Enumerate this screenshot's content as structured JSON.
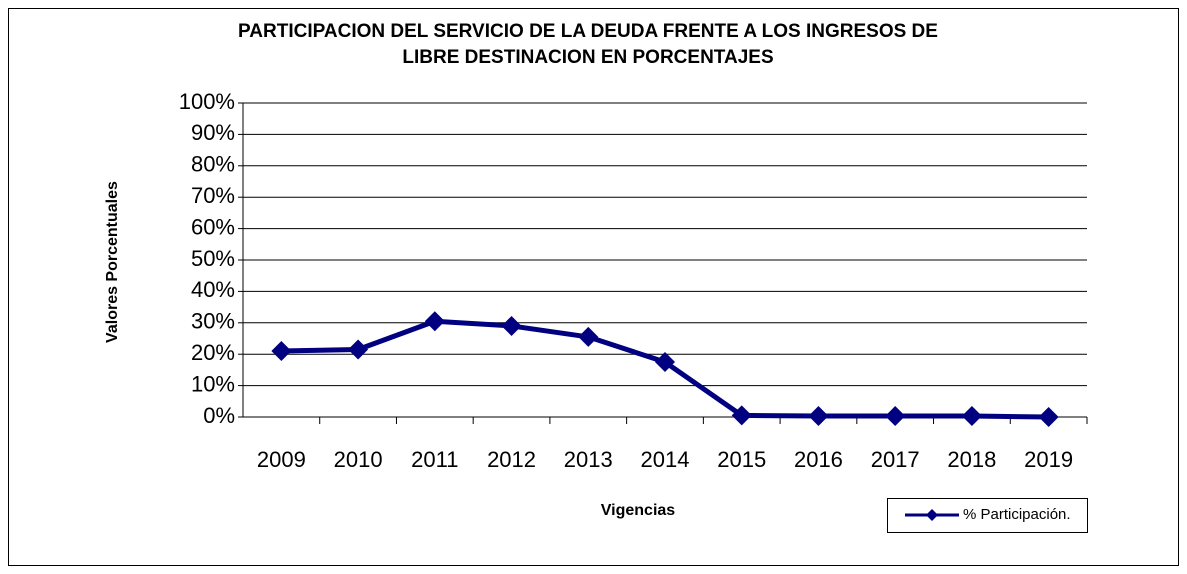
{
  "chart_data": {
    "type": "line",
    "title": [
      "PARTICIPACION DEL SERVICIO DE LA DEUDA FRENTE A LOS INGRESOS DE",
      "LIBRE DESTINACION EN PORCENTAJES"
    ],
    "x_label": "Vigencias",
    "y_label": "Valores Porcentuales",
    "categories": [
      "2009",
      "2010",
      "2011",
      "2012",
      "2013",
      "2014",
      "2015",
      "2016",
      "2017",
      "2018",
      "2019"
    ],
    "series": [
      {
        "name": "% Participación.",
        "color": "#000080",
        "values": [
          21,
          21.5,
          30.5,
          29,
          25.5,
          17.5,
          0.5,
          0.3,
          0.3,
          0.3,
          0
        ]
      }
    ],
    "ylim": [
      0,
      100
    ],
    "yticks": [
      {
        "value": 0,
        "label": "0%"
      },
      {
        "value": 10,
        "label": "10%"
      },
      {
        "value": 20,
        "label": "20%"
      },
      {
        "value": 30,
        "label": "30%"
      },
      {
        "value": 40,
        "label": "40%"
      },
      {
        "value": 50,
        "label": "50%"
      },
      {
        "value": 60,
        "label": "60%"
      },
      {
        "value": 70,
        "label": "70%"
      },
      {
        "value": 80,
        "label": "80%"
      },
      {
        "value": 90,
        "label": "90%"
      },
      {
        "value": 100,
        "label": "100%"
      }
    ],
    "grid": true,
    "legend": "bottom-right"
  }
}
